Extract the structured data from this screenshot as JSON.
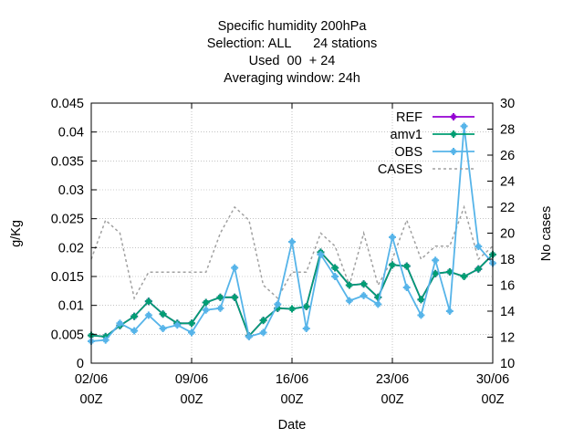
{
  "chart_data": {
    "type": "line",
    "title_lines": [
      "Specific humidity 200hPa",
      "Selection: ALL      24 stations",
      "Used  00  + 24",
      "Averaging window: 24h"
    ],
    "xlabel": "Date",
    "ylabel": "g/Kg",
    "y2label": "No cases",
    "xlim": [
      "2023-06-02",
      "2023-06-30"
    ],
    "ylim": [
      0,
      0.045
    ],
    "y2lim": [
      10,
      30
    ],
    "x_ticks": [
      {
        "x": "2023-06-02",
        "line1": "02/06",
        "line2": "00Z"
      },
      {
        "x": "2023-06-09",
        "line1": "09/06",
        "line2": "00Z"
      },
      {
        "x": "2023-06-16",
        "line1": "16/06",
        "line2": "00Z"
      },
      {
        "x": "2023-06-23",
        "line1": "23/06",
        "line2": "00Z"
      },
      {
        "x": "2023-06-30",
        "line1": "30/06",
        "line2": "00Z"
      }
    ],
    "y_ticks": [
      "0",
      "0.005",
      "0.01",
      "0.015",
      "0.02",
      "0.025",
      "0.03",
      "0.035",
      "0.04",
      "0.045"
    ],
    "y2_ticks": [
      "10",
      "12",
      "14",
      "16",
      "18",
      "20",
      "22",
      "24",
      "26",
      "28",
      "30"
    ],
    "legend_position": "top-right",
    "x": [
      "2023-06-02",
      "2023-06-03",
      "2023-06-04",
      "2023-06-05",
      "2023-06-06",
      "2023-06-07",
      "2023-06-08",
      "2023-06-09",
      "2023-06-10",
      "2023-06-11",
      "2023-06-12",
      "2023-06-13",
      "2023-06-14",
      "2023-06-15",
      "2023-06-16",
      "2023-06-17",
      "2023-06-18",
      "2023-06-19",
      "2023-06-20",
      "2023-06-21",
      "2023-06-22",
      "2023-06-23",
      "2023-06-24",
      "2023-06-25",
      "2023-06-26",
      "2023-06-27",
      "2023-06-28",
      "2023-06-29",
      "2023-06-30"
    ],
    "series": [
      {
        "name": "REF",
        "color": "#9400d3",
        "axis": "y",
        "values": [
          0.0048,
          0.0046,
          0.0065,
          0.0081,
          0.0107,
          0.0085,
          0.0069,
          0.0069,
          0.0105,
          0.0114,
          0.0114,
          0.0047,
          0.0074,
          0.0095,
          0.0094,
          0.0098,
          0.0192,
          0.0165,
          0.0135,
          0.0137,
          0.0114,
          0.017,
          0.0168,
          0.011,
          0.0155,
          0.0158,
          0.015,
          0.0163,
          0.0188
        ]
      },
      {
        "name": "amv1",
        "color": "#009e73",
        "axis": "y",
        "values": [
          0.0048,
          0.0046,
          0.0065,
          0.0081,
          0.0107,
          0.0085,
          0.0069,
          0.0069,
          0.0105,
          0.0114,
          0.0114,
          0.0047,
          0.0074,
          0.0095,
          0.0094,
          0.0098,
          0.0192,
          0.0165,
          0.0135,
          0.0137,
          0.0114,
          0.017,
          0.0168,
          0.011,
          0.0155,
          0.0158,
          0.015,
          0.0163,
          0.0188
        ]
      },
      {
        "name": "OBS",
        "color": "#56b4e9",
        "axis": "y",
        "values": [
          0.0038,
          0.004,
          0.0069,
          0.0056,
          0.0083,
          0.006,
          0.0066,
          0.0053,
          0.0092,
          0.0095,
          0.0165,
          0.0046,
          0.0053,
          0.0102,
          0.021,
          0.006,
          0.0188,
          0.015,
          0.0108,
          0.0117,
          0.0102,
          0.0218,
          0.0131,
          0.0083,
          0.0178,
          0.009,
          0.041,
          0.0202,
          0.0173
        ]
      },
      {
        "name": "CASES",
        "color": "#a0a0a0",
        "axis": "y2",
        "values": [
          18,
          21,
          20,
          15,
          17,
          17,
          17,
          17,
          17,
          20,
          22,
          21,
          16,
          15,
          17,
          17,
          20,
          19,
          16,
          20,
          16,
          18,
          21,
          18,
          19,
          19,
          22,
          18,
          19
        ]
      }
    ]
  }
}
